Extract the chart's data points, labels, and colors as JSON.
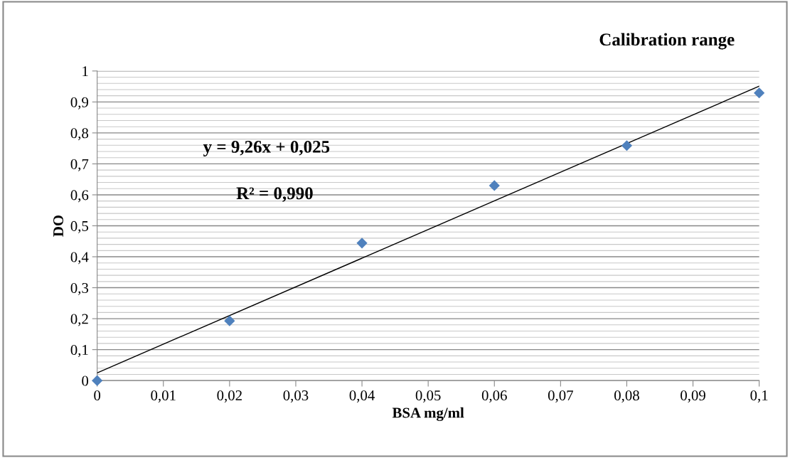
{
  "chart_data": {
    "type": "scatter",
    "title": "Calibration range",
    "xlabel": "BSA mg/ml",
    "ylabel": "DO",
    "annotations": [
      "y = 9,26x + 0,025",
      "R² = 0,990"
    ],
    "series": [
      {
        "color": "#4f81bd",
        "marker": "diamond",
        "x": [
          0,
          0.02,
          0.04,
          0.06,
          0.08,
          0.1
        ],
        "values": [
          0,
          0.193,
          0.444,
          0.63,
          0.759,
          0.929
        ]
      },
      {
        "type": "line",
        "color": "#000000",
        "marker": "none",
        "line_style": "solid",
        "x": [
          0,
          0.1
        ],
        "values": [
          0.025,
          0.951
        ]
      }
    ],
    "xlim": [
      0,
      0.1
    ],
    "ylim": [
      0,
      1
    ],
    "xticks": [
      {
        "value": 0,
        "label": "0"
      },
      {
        "value": 0.01,
        "label": "0,01"
      },
      {
        "value": 0.02,
        "label": "0,02"
      },
      {
        "value": 0.03,
        "label": "0,03"
      },
      {
        "value": 0.04,
        "label": "0,04"
      },
      {
        "value": 0.05,
        "label": "0,05"
      },
      {
        "value": 0.06,
        "label": "0,06"
      },
      {
        "value": 0.07,
        "label": "0,07"
      },
      {
        "value": 0.08,
        "label": "0,08"
      },
      {
        "value": 0.09,
        "label": "0,09"
      },
      {
        "value": 0.1,
        "label": "0,1"
      }
    ],
    "yticks": [
      {
        "value": 0,
        "label": "0"
      },
      {
        "value": 0.1,
        "label": "0,1"
      },
      {
        "value": 0.2,
        "label": "0,2"
      },
      {
        "value": 0.3,
        "label": "0,3"
      },
      {
        "value": 0.4,
        "label": "0,4"
      },
      {
        "value": 0.5,
        "label": "0,5"
      },
      {
        "value": 0.6,
        "label": "0,6"
      },
      {
        "value": 0.7,
        "label": "0,7"
      },
      {
        "value": 0.8,
        "label": "0,8"
      },
      {
        "value": 0.9,
        "label": "0,9"
      },
      {
        "value": 1,
        "label": "1"
      }
    ],
    "grid": "y"
  }
}
